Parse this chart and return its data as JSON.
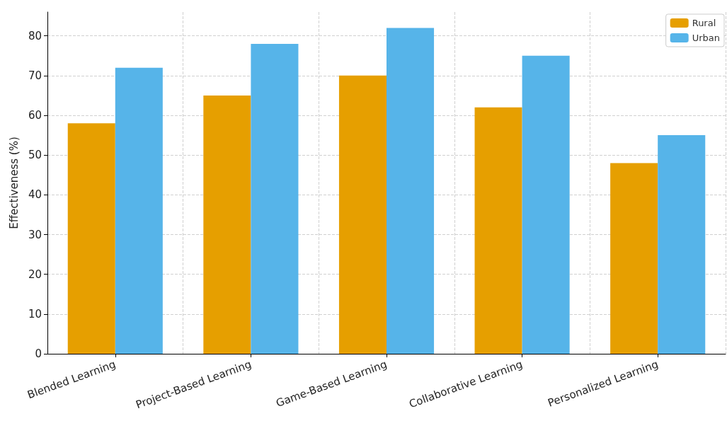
{
  "chart_data": {
    "type": "bar",
    "ylabel": "Effectiveness (%)",
    "categories": [
      "Blended Learning",
      "Project-Based Learning",
      "Game-Based Learning",
      "Collaborative Learning",
      "Personalized Learning"
    ],
    "series": [
      {
        "name": "Rural",
        "color": "#e69f00",
        "values": [
          58,
          65,
          70,
          62,
          48
        ]
      },
      {
        "name": "Urban",
        "color": "#56b4e9",
        "values": [
          72,
          78,
          82,
          75,
          55
        ]
      }
    ],
    "ylim": [
      0,
      86
    ],
    "yticks": [
      0,
      10,
      20,
      30,
      40,
      50,
      60,
      70,
      80
    ],
    "grid": true,
    "legend": "top right"
  }
}
